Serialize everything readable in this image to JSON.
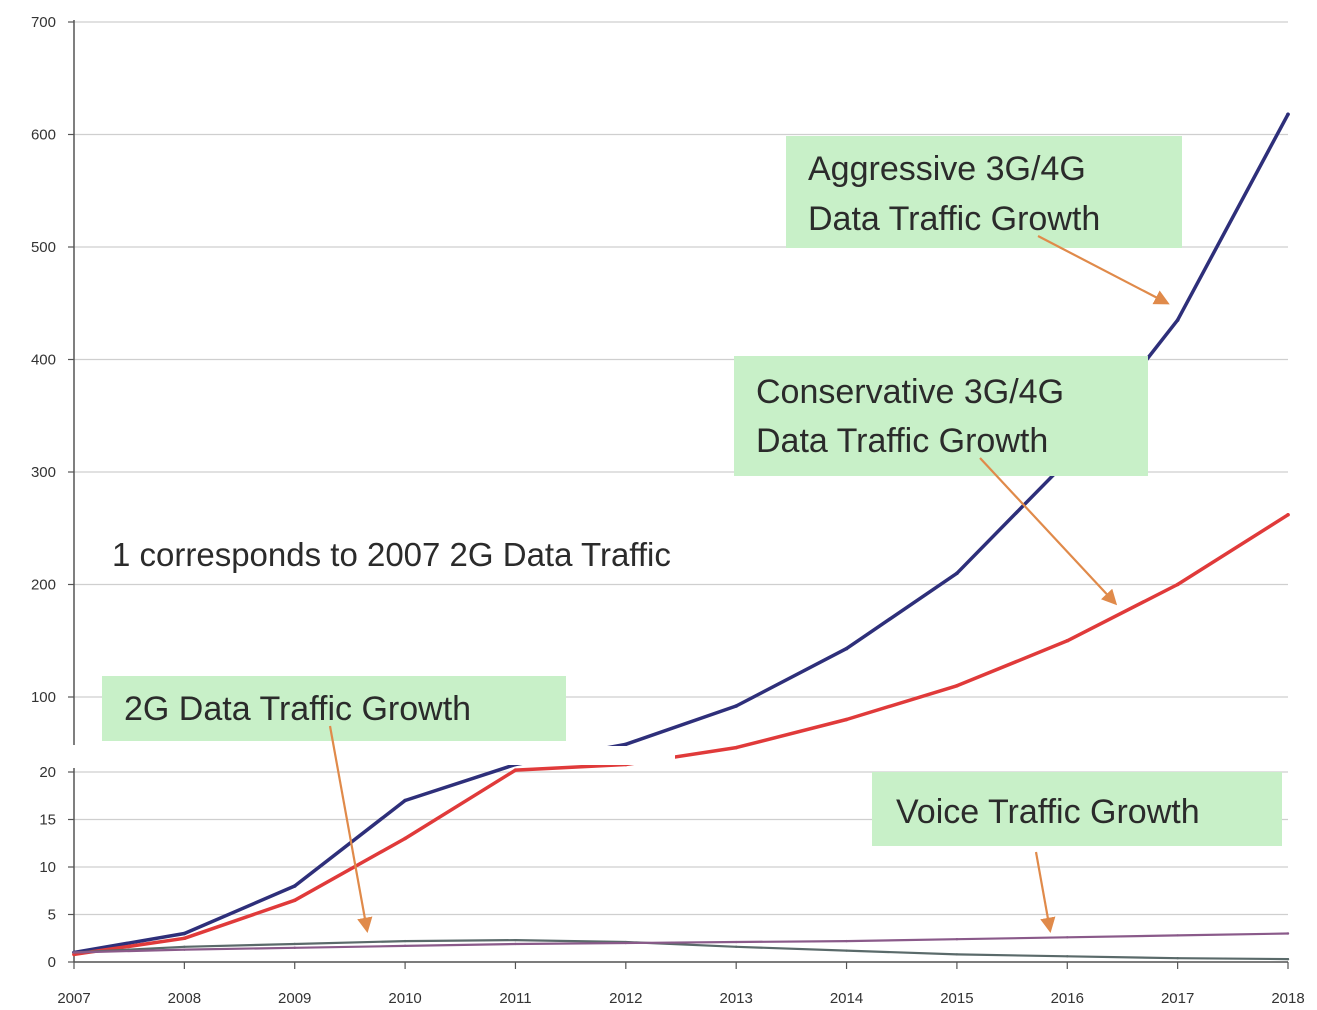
{
  "chart_data": {
    "type": "line",
    "title": "",
    "xlabel": "",
    "ylabel": "",
    "note": "1 corresponds to 2007 2G Data Traffic",
    "x": [
      2007,
      2008,
      2009,
      2010,
      2011,
      2012,
      2013,
      2014,
      2015,
      2016,
      2017,
      2018
    ],
    "x_ticks": [
      "2007",
      "2008",
      "2009",
      "2010",
      "2011",
      "2012",
      "2013",
      "2014",
      "2015",
      "2016",
      "2017",
      "2018"
    ],
    "y_axis_broken": true,
    "y_lower_ticks": [
      "0",
      "5",
      "10",
      "15",
      "20"
    ],
    "y_upper_ticks": [
      "100",
      "200",
      "300",
      "400",
      "500",
      "600",
      "700"
    ],
    "ylim_lower": [
      0,
      20
    ],
    "ylim_upper": [
      20,
      700
    ],
    "grid": true,
    "series": [
      {
        "name": "Aggressive 3G/4G Data Traffic Growth",
        "color": "#2e2f7a",
        "values": [
          1,
          3,
          8,
          17,
          40,
          58,
          92,
          143,
          210,
          310,
          435,
          618
        ]
      },
      {
        "name": "Conservative 3G/4G Data Traffic Growth",
        "color": "#e03a3a",
        "values": [
          0.8,
          2.5,
          6.5,
          13,
          35,
          40,
          55,
          80,
          110,
          150,
          200,
          262
        ]
      },
      {
        "name": "2G Data Traffic Growth",
        "color": "#5a6a6a",
        "values": [
          1,
          1.6,
          1.9,
          2.2,
          2.3,
          2.1,
          1.6,
          1.2,
          0.8,
          0.6,
          0.4,
          0.3
        ]
      },
      {
        "name": "Voice Traffic Growth",
        "color": "#8a5a8a",
        "values": [
          1,
          1.3,
          1.5,
          1.7,
          1.9,
          2.0,
          2.1,
          2.2,
          2.4,
          2.6,
          2.8,
          3.0
        ]
      }
    ],
    "annotations": [
      {
        "text_lines": [
          "Aggressive 3G/4G",
          "Data Traffic Growth"
        ],
        "series": 0
      },
      {
        "text_lines": [
          "Conservative 3G/4G",
          "Data Traffic Growth"
        ],
        "series": 1
      },
      {
        "text_lines": [
          "2G Data Traffic Growth"
        ],
        "series": 2
      },
      {
        "text_lines": [
          "Voice Traffic Growth"
        ],
        "series": 3
      }
    ],
    "arrow_color": "#e08a4a",
    "box_color": "#c8f0c8"
  }
}
